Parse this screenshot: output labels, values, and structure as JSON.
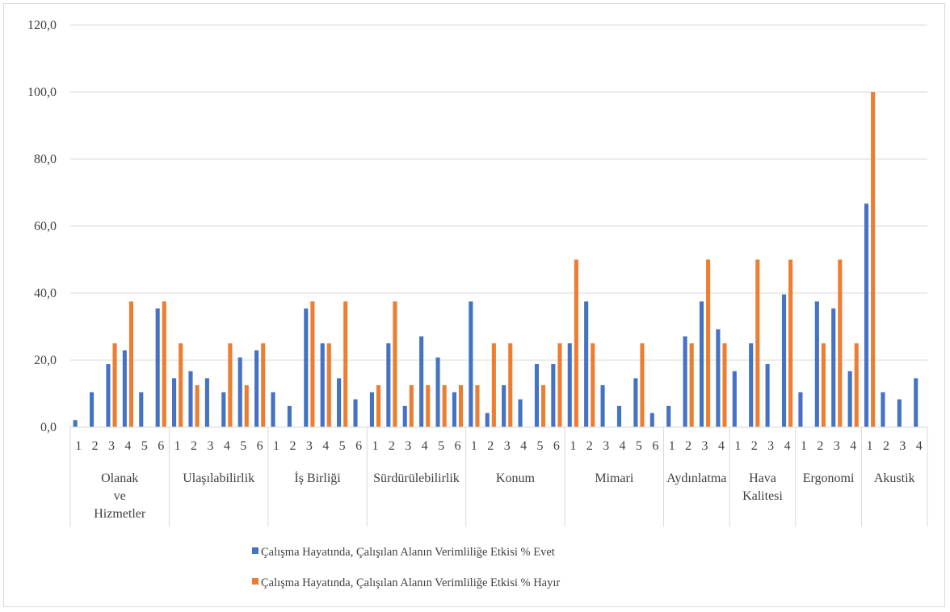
{
  "chart_data": {
    "type": "bar",
    "ylim": [
      0,
      120
    ],
    "ytick_labels": [
      "0,0",
      "20,0",
      "40,0",
      "60,0",
      "80,0",
      "100,0",
      "120,0"
    ],
    "grid": true,
    "legend_position": "bottom",
    "groups": [
      {
        "lines": [
          "Olanak",
          "ve",
          "Hizmetler"
        ],
        "labels": [
          "1",
          "2",
          "3",
          "4",
          "5",
          "6"
        ]
      },
      {
        "lines": [
          "Ulaşılabilirlik"
        ],
        "labels": [
          "1",
          "2",
          "3",
          "4",
          "5",
          "6"
        ]
      },
      {
        "lines": [
          "İş Birliği"
        ],
        "labels": [
          "1",
          "2",
          "3",
          "4",
          "5",
          "6"
        ]
      },
      {
        "lines": [
          "Sürdürülebilirlik"
        ],
        "labels": [
          "1",
          "2",
          "3",
          "4",
          "5",
          "6"
        ]
      },
      {
        "lines": [
          "Konum"
        ],
        "labels": [
          "1",
          "2",
          "3",
          "4",
          "5",
          "6"
        ]
      },
      {
        "lines": [
          "Mimari"
        ],
        "labels": [
          "1",
          "2",
          "3",
          "4",
          "5",
          "6"
        ]
      },
      {
        "lines": [
          "Aydınlatma"
        ],
        "labels": [
          "1",
          "2",
          "3",
          "4"
        ]
      },
      {
        "lines": [
          "Hava",
          "Kalitesi"
        ],
        "labels": [
          "1",
          "2",
          "3",
          "4"
        ]
      },
      {
        "lines": [
          "Ergonomi"
        ],
        "labels": [
          "1",
          "2",
          "3",
          "4"
        ]
      },
      {
        "lines": [
          "Akustik"
        ],
        "labels": [
          "1",
          "2",
          "3",
          "4"
        ]
      }
    ],
    "series": [
      {
        "name": "Çalışma Hayatında, Çalışılan Alanın Verimliliğe Etkisi % Evet",
        "color": "#4472c4",
        "values": [
          2.1,
          10.4,
          18.8,
          22.9,
          10.4,
          35.4,
          14.6,
          16.7,
          14.6,
          10.4,
          20.8,
          22.9,
          10.4,
          6.3,
          35.4,
          25.0,
          14.6,
          8.3,
          10.4,
          25.0,
          6.3,
          27.1,
          20.8,
          10.4,
          37.5,
          4.2,
          12.5,
          8.3,
          18.8,
          18.8,
          25.0,
          37.5,
          12.5,
          6.3,
          14.6,
          4.2,
          6.3,
          27.1,
          37.5,
          29.2,
          16.7,
          25.0,
          18.8,
          39.6,
          10.4,
          37.5,
          35.4,
          16.7,
          66.7,
          10.4,
          8.3,
          14.6
        ]
      },
      {
        "name": "Çalışma Hayatında, Çalışılan Alanın Verimliliğe Etkisi % Hayır",
        "color": "#ed7d31",
        "values": [
          0,
          0,
          25.0,
          37.5,
          0,
          37.5,
          25.0,
          12.5,
          0,
          25.0,
          12.5,
          25.0,
          0,
          0,
          37.5,
          25.0,
          37.5,
          0,
          12.5,
          37.5,
          12.5,
          12.5,
          12.5,
          12.5,
          12.5,
          25.0,
          25.0,
          0,
          12.5,
          25.0,
          50.0,
          25.0,
          0,
          0,
          25.0,
          0,
          0,
          25.0,
          50.0,
          25.0,
          0,
          50.0,
          0,
          50.0,
          0,
          25.0,
          50.0,
          25.0,
          100.0,
          0,
          0,
          0
        ]
      }
    ]
  }
}
